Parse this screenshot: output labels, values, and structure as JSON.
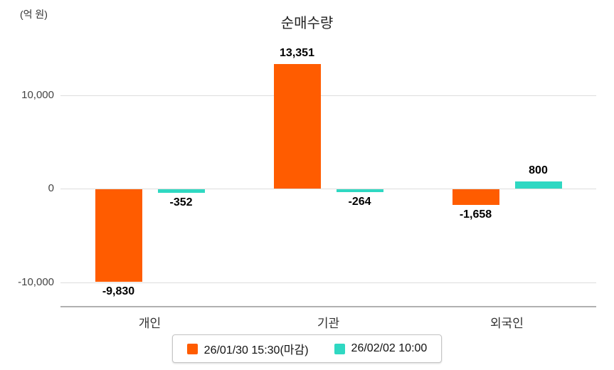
{
  "chart": {
    "title": "순매수량",
    "unit_label": "(억 원)"
  },
  "chart_data": {
    "type": "bar",
    "title": "순매수량",
    "ylabel": "(억 원)",
    "categories": [
      "개인",
      "기관",
      "외국인"
    ],
    "series": [
      {
        "name": "26/01/30 15:30(마감)",
        "color": "#ff5c00",
        "values": [
          -9830,
          13351,
          -1658
        ],
        "labels": [
          "-9,830",
          "13,351",
          "-1,658"
        ]
      },
      {
        "name": "26/02/02 10:00",
        "color": "#2fd8c2",
        "values": [
          -352,
          -264,
          800
        ],
        "labels": [
          "-352",
          "-264",
          "800"
        ]
      }
    ],
    "yticks": [
      {
        "value": 10000,
        "label": "10,000"
      },
      {
        "value": 0,
        "label": "0"
      },
      {
        "value": -10000,
        "label": "-10,000"
      }
    ],
    "ylim": [
      -12500,
      15600
    ],
    "grid": true,
    "legend_position": "bottom"
  }
}
